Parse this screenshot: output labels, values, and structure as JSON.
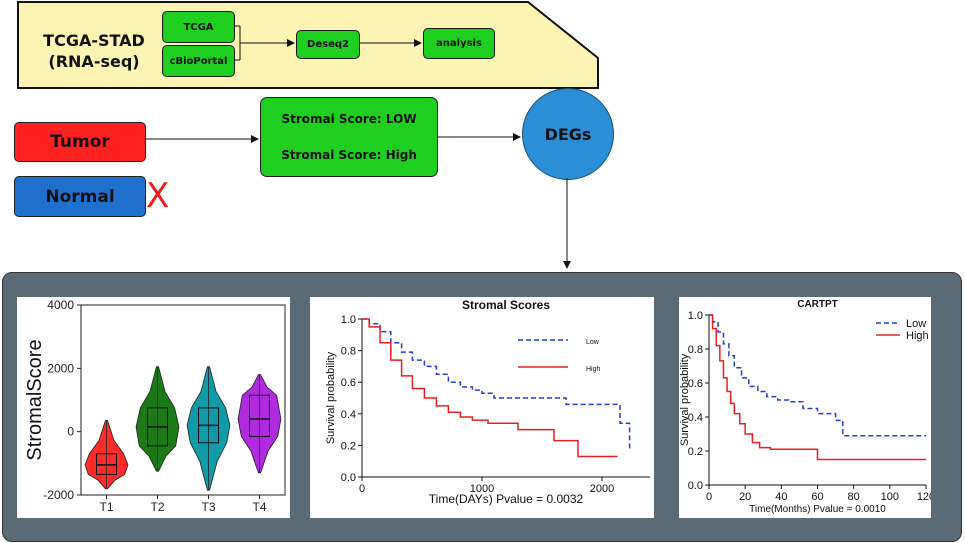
{
  "pipeline": {
    "source_label": "TCGA-STAD\n(RNA-seq)",
    "db1": "TCGA",
    "db2": "cBioPortal",
    "step1": "Deseq2",
    "step2": "analysis"
  },
  "groups": {
    "tumor": "Tumor",
    "normal": "Normal",
    "excluded_mark": "X",
    "score_low": "Stromal Score: LOW",
    "score_high": "Stromal Score: High",
    "degs": "DEGs"
  },
  "colors": {
    "tumor": "#ff2020",
    "normal": "#1f6fcc",
    "green": "#1fcf1f",
    "degs": "#2a8fd6",
    "yellow": "#fbf4b3",
    "panel": "#5a6b76"
  },
  "chart_data": [
    {
      "type": "violin",
      "title": "",
      "ylabel": "StromalScore",
      "xlabel": "",
      "categories": [
        "T1",
        "T2",
        "T3",
        "T4"
      ],
      "colors": [
        "#ff2a2a",
        "#1b7a16",
        "#119aa8",
        "#b02ae0"
      ],
      "yticks": [
        4000,
        2000,
        0,
        -2000
      ],
      "ylim": [
        -2000,
        4000
      ],
      "series": [
        {
          "name": "T1",
          "min": -1800,
          "q1": -1350,
          "median": -1050,
          "q3": -700,
          "max": 350
        },
        {
          "name": "T2",
          "min": -1250,
          "q1": -450,
          "median": 150,
          "q3": 750,
          "max": 2050
        },
        {
          "name": "T3",
          "min": -1850,
          "q1": -350,
          "median": 200,
          "q3": 750,
          "max": 2050
        },
        {
          "name": "T4",
          "min": -1300,
          "q1": -150,
          "median": 400,
          "q3": 1150,
          "max": 1800
        }
      ]
    },
    {
      "type": "line",
      "title": "Stromal Scores",
      "xlabel": "Time(DAYs) Pvalue =  0.0032",
      "ylabel": "Survival probability",
      "xticks": [
        "0",
        "1000",
        "2000"
      ],
      "yticks": [
        "0.0",
        "0.2",
        "0.4",
        "0.6",
        "0.8",
        "1.0"
      ],
      "xlim": [
        0,
        2400
      ],
      "ylim": [
        0,
        1
      ],
      "legend": [
        {
          "name": "Low",
          "color": "#1f3fd0",
          "dash": true
        },
        {
          "name": "High",
          "color": "#e82020",
          "dash": false
        }
      ],
      "series": [
        {
          "name": "Low",
          "x": [
            0,
            60,
            150,
            240,
            330,
            420,
            520,
            620,
            720,
            820,
            920,
            1000,
            1100,
            1280,
            1700,
            2150,
            2230
          ],
          "y": [
            1.0,
            0.97,
            0.92,
            0.85,
            0.79,
            0.74,
            0.7,
            0.65,
            0.6,
            0.57,
            0.55,
            0.53,
            0.5,
            0.5,
            0.46,
            0.34,
            0.17
          ]
        },
        {
          "name": "High",
          "x": [
            0,
            60,
            150,
            240,
            330,
            420,
            520,
            620,
            720,
            820,
            920,
            1050,
            1300,
            1600,
            1800,
            2130
          ],
          "y": [
            1.0,
            0.95,
            0.85,
            0.74,
            0.64,
            0.56,
            0.5,
            0.45,
            0.41,
            0.38,
            0.36,
            0.34,
            0.3,
            0.23,
            0.13,
            0.13
          ]
        }
      ]
    },
    {
      "type": "line",
      "title": "CARTPT",
      "xlabel": "Time(Months) Pvalue =  0.0010",
      "ylabel": "Survival probability",
      "xticks": [
        "0",
        "20",
        "40",
        "60",
        "80",
        "100",
        "120"
      ],
      "yticks": [
        "0.0",
        "0.2",
        "0.4",
        "0.6",
        "0.8",
        "1.0"
      ],
      "xlim": [
        0,
        120
      ],
      "ylim": [
        0,
        1
      ],
      "legend": [
        {
          "name": "Low",
          "color": "#1f3fd0",
          "dash": true
        },
        {
          "name": "High",
          "color": "#e82020",
          "dash": false
        }
      ],
      "series": [
        {
          "name": "Low",
          "x": [
            0,
            2,
            5,
            8,
            11,
            14,
            18,
            22,
            27,
            32,
            38,
            44,
            52,
            60,
            70,
            74,
            120
          ],
          "y": [
            1.0,
            0.96,
            0.9,
            0.83,
            0.76,
            0.69,
            0.63,
            0.58,
            0.55,
            0.52,
            0.5,
            0.49,
            0.45,
            0.42,
            0.38,
            0.29,
            0.29
          ]
        },
        {
          "name": "High",
          "x": [
            0,
            2,
            4,
            6,
            8,
            10,
            12,
            14,
            17,
            20,
            24,
            28,
            34,
            44,
            60,
            120
          ],
          "y": [
            1.0,
            0.92,
            0.82,
            0.73,
            0.63,
            0.55,
            0.48,
            0.42,
            0.36,
            0.3,
            0.25,
            0.22,
            0.21,
            0.21,
            0.15,
            0.15
          ]
        }
      ]
    }
  ]
}
